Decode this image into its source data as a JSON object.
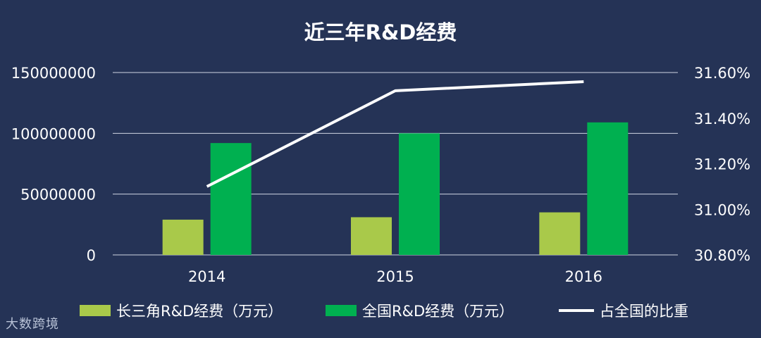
{
  "colors": {
    "background": "#253356",
    "grid": "#cfd5e2",
    "text": "#ffffff",
    "series_regional": "#a9c94a",
    "series_national": "#00b050",
    "series_ratio": "#ffffff"
  },
  "watermark": "大数跨境",
  "chart_data": {
    "type": "bar",
    "title": "近三年R&D经费",
    "categories": [
      "2014",
      "2015",
      "2016"
    ],
    "series": [
      {
        "name": "长三角R&D经费（万元）",
        "kind": "bar",
        "axis": "left",
        "values": [
          29000000,
          31000000,
          35000000
        ]
      },
      {
        "name": "全国R&D经费（万元）",
        "kind": "bar",
        "axis": "left",
        "values": [
          92000000,
          100000000,
          109000000
        ]
      },
      {
        "name": "占全国的比重",
        "kind": "line",
        "axis": "right",
        "values": [
          31.1,
          31.52,
          31.56
        ]
      }
    ],
    "y_left": {
      "lim": [
        0,
        150000000
      ],
      "ticks": [
        "0",
        "50000000",
        "100000000",
        "150000000"
      ]
    },
    "y_right": {
      "lim": [
        30.8,
        31.6
      ],
      "ticks": [
        "30.80%",
        "31.00%",
        "31.20%",
        "31.40%",
        "31.60%"
      ]
    },
    "grid": true,
    "legend_position": "bottom"
  }
}
